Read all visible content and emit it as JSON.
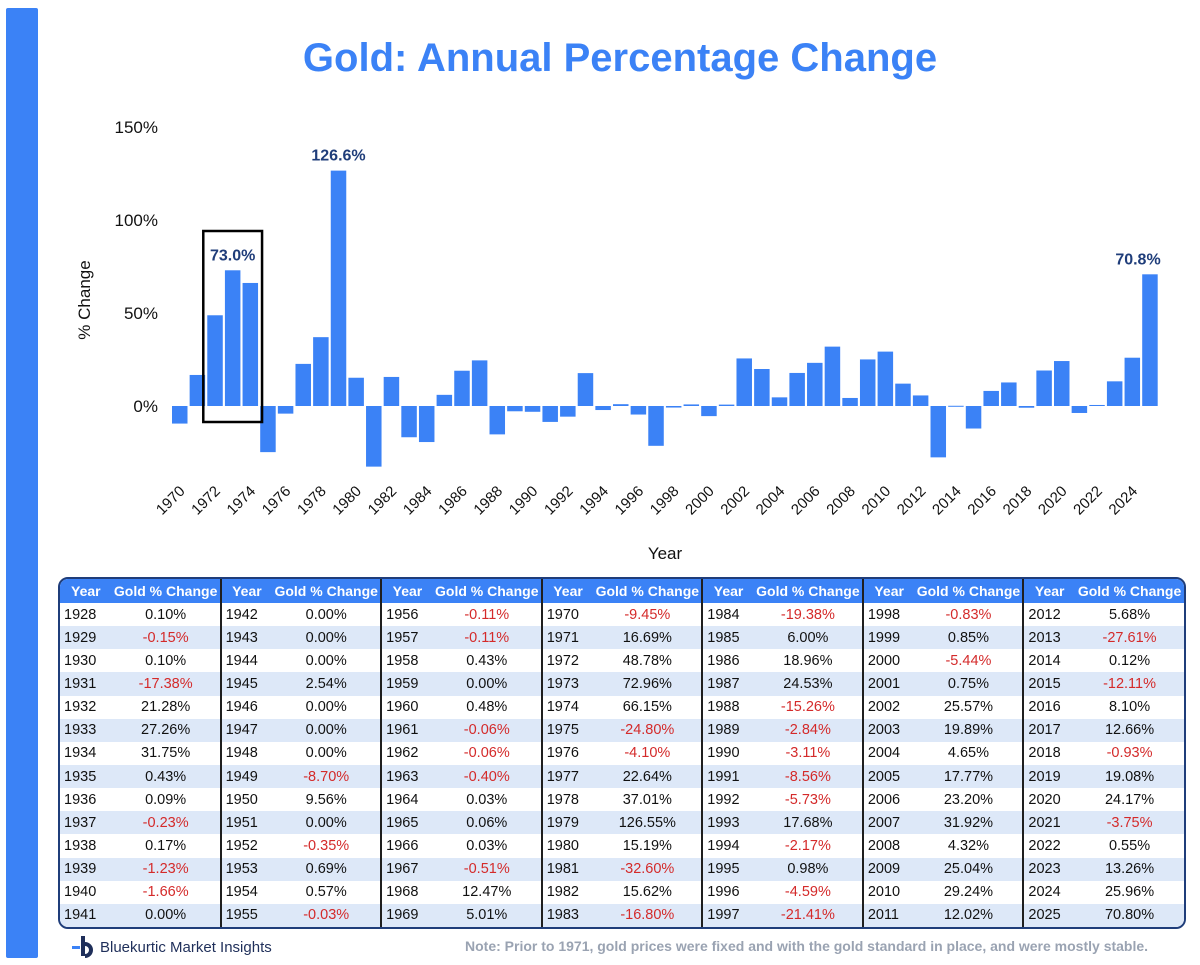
{
  "chart_data": {
    "type": "bar",
    "title": "Gold: Annual Percentage Change",
    "xlabel": "Year",
    "ylabel": "% Change",
    "ylim": [
      -35,
      150
    ],
    "yticks": [
      "150%",
      "100%",
      "50%",
      "0%"
    ],
    "ytick_values": [
      150,
      100,
      50,
      0
    ],
    "xtick_labels": [
      "1970",
      "1972",
      "1974",
      "1976",
      "1978",
      "1980",
      "1982",
      "1984",
      "1986",
      "1988",
      "1990",
      "1992",
      "1994",
      "1996",
      "1998",
      "2000",
      "2002",
      "2004",
      "2006",
      "2008",
      "2010",
      "2012",
      "2014",
      "2016",
      "2018",
      "2020",
      "2022",
      "2024"
    ],
    "categories": [
      1970,
      1971,
      1972,
      1973,
      1974,
      1975,
      1976,
      1977,
      1978,
      1979,
      1980,
      1981,
      1982,
      1983,
      1984,
      1985,
      1986,
      1987,
      1988,
      1989,
      1990,
      1991,
      1992,
      1993,
      1994,
      1995,
      1996,
      1997,
      1998,
      1999,
      2000,
      2001,
      2002,
      2003,
      2004,
      2005,
      2006,
      2007,
      2008,
      2009,
      2010,
      2011,
      2012,
      2013,
      2014,
      2015,
      2016,
      2017,
      2018,
      2019,
      2020,
      2021,
      2022,
      2023,
      2024,
      2025
    ],
    "values": [
      -9.45,
      16.69,
      48.78,
      72.96,
      66.15,
      -24.8,
      -4.1,
      22.64,
      37.01,
      126.55,
      15.19,
      -32.6,
      15.62,
      -16.8,
      -19.38,
      6.0,
      18.96,
      24.53,
      -15.26,
      -2.84,
      -3.11,
      -8.56,
      -5.73,
      17.68,
      -2.17,
      0.98,
      -4.59,
      -21.41,
      -0.83,
      0.85,
      -5.44,
      0.75,
      25.57,
      19.89,
      4.65,
      17.77,
      23.2,
      31.92,
      4.32,
      25.04,
      29.24,
      12.02,
      5.68,
      -27.61,
      0.12,
      -12.11,
      8.1,
      12.66,
      -0.93,
      19.08,
      24.17,
      -3.75,
      0.55,
      13.26,
      25.96,
      70.8
    ],
    "annotations": [
      {
        "year": 1973,
        "text": "73.0%"
      },
      {
        "year": 1979,
        "text": "126.6%"
      },
      {
        "year": 2025,
        "text": "70.8%"
      }
    ],
    "highlight_range": [
      1972,
      1974
    ],
    "bar_color": "#3b82f6"
  },
  "table": {
    "headers": {
      "year": "Year",
      "change": "Gold % Change"
    },
    "columns": [
      [
        [
          "1928",
          "0.10%"
        ],
        [
          "1929",
          "-0.15%"
        ],
        [
          "1930",
          "0.10%"
        ],
        [
          "1931",
          "-17.38%"
        ],
        [
          "1932",
          "21.28%"
        ],
        [
          "1933",
          "27.26%"
        ],
        [
          "1934",
          "31.75%"
        ],
        [
          "1935",
          "0.43%"
        ],
        [
          "1936",
          "0.09%"
        ],
        [
          "1937",
          "-0.23%"
        ],
        [
          "1938",
          "0.17%"
        ],
        [
          "1939",
          "-1.23%"
        ],
        [
          "1940",
          "-1.66%"
        ],
        [
          "1941",
          "0.00%"
        ]
      ],
      [
        [
          "1942",
          "0.00%"
        ],
        [
          "1943",
          "0.00%"
        ],
        [
          "1944",
          "0.00%"
        ],
        [
          "1945",
          "2.54%"
        ],
        [
          "1946",
          "0.00%"
        ],
        [
          "1947",
          "0.00%"
        ],
        [
          "1948",
          "0.00%"
        ],
        [
          "1949",
          "-8.70%"
        ],
        [
          "1950",
          "9.56%"
        ],
        [
          "1951",
          "0.00%"
        ],
        [
          "1952",
          "-0.35%"
        ],
        [
          "1953",
          "0.69%"
        ],
        [
          "1954",
          "0.57%"
        ],
        [
          "1955",
          "-0.03%"
        ]
      ],
      [
        [
          "1956",
          "-0.11%"
        ],
        [
          "1957",
          "-0.11%"
        ],
        [
          "1958",
          "0.43%"
        ],
        [
          "1959",
          "0.00%"
        ],
        [
          "1960",
          "0.48%"
        ],
        [
          "1961",
          "-0.06%"
        ],
        [
          "1962",
          "-0.06%"
        ],
        [
          "1963",
          "-0.40%"
        ],
        [
          "1964",
          "0.03%"
        ],
        [
          "1965",
          "0.06%"
        ],
        [
          "1966",
          "0.03%"
        ],
        [
          "1967",
          "-0.51%"
        ],
        [
          "1968",
          "12.47%"
        ],
        [
          "1969",
          "5.01%"
        ]
      ],
      [
        [
          "1970",
          "-9.45%"
        ],
        [
          "1971",
          "16.69%"
        ],
        [
          "1972",
          "48.78%"
        ],
        [
          "1973",
          "72.96%"
        ],
        [
          "1974",
          "66.15%"
        ],
        [
          "1975",
          "-24.80%"
        ],
        [
          "1976",
          "-4.10%"
        ],
        [
          "1977",
          "22.64%"
        ],
        [
          "1978",
          "37.01%"
        ],
        [
          "1979",
          "126.55%"
        ],
        [
          "1980",
          "15.19%"
        ],
        [
          "1981",
          "-32.60%"
        ],
        [
          "1982",
          "15.62%"
        ],
        [
          "1983",
          "-16.80%"
        ]
      ],
      [
        [
          "1984",
          "-19.38%"
        ],
        [
          "1985",
          "6.00%"
        ],
        [
          "1986",
          "18.96%"
        ],
        [
          "1987",
          "24.53%"
        ],
        [
          "1988",
          "-15.26%"
        ],
        [
          "1989",
          "-2.84%"
        ],
        [
          "1990",
          "-3.11%"
        ],
        [
          "1991",
          "-8.56%"
        ],
        [
          "1992",
          "-5.73%"
        ],
        [
          "1993",
          "17.68%"
        ],
        [
          "1994",
          "-2.17%"
        ],
        [
          "1995",
          "0.98%"
        ],
        [
          "1996",
          "-4.59%"
        ],
        [
          "1997",
          "-21.41%"
        ]
      ],
      [
        [
          "1998",
          "-0.83%"
        ],
        [
          "1999",
          "0.85%"
        ],
        [
          "2000",
          "-5.44%"
        ],
        [
          "2001",
          "0.75%"
        ],
        [
          "2002",
          "25.57%"
        ],
        [
          "2003",
          "19.89%"
        ],
        [
          "2004",
          "4.65%"
        ],
        [
          "2005",
          "17.77%"
        ],
        [
          "2006",
          "23.20%"
        ],
        [
          "2007",
          "31.92%"
        ],
        [
          "2008",
          "4.32%"
        ],
        [
          "2009",
          "25.04%"
        ],
        [
          "2010",
          "29.24%"
        ],
        [
          "2011",
          "12.02%"
        ]
      ],
      [
        [
          "2012",
          "5.68%"
        ],
        [
          "2013",
          "-27.61%"
        ],
        [
          "2014",
          "0.12%"
        ],
        [
          "2015",
          "-12.11%"
        ],
        [
          "2016",
          "8.10%"
        ],
        [
          "2017",
          "12.66%"
        ],
        [
          "2018",
          "-0.93%"
        ],
        [
          "2019",
          "19.08%"
        ],
        [
          "2020",
          "24.17%"
        ],
        [
          "2021",
          "-3.75%"
        ],
        [
          "2022",
          "0.55%"
        ],
        [
          "2023",
          "13.26%"
        ],
        [
          "2024",
          "25.96%"
        ],
        [
          "2025",
          "70.80%"
        ]
      ]
    ]
  },
  "footer": {
    "brand": "Bluekurtic Market Insights",
    "note": "Note: Prior to 1971, gold prices were fixed and with the gold standard in place, and were mostly stable."
  },
  "colors": {
    "accent": "#3b82f6",
    "negative": "#d42a2a",
    "dark_blue": "#1f3d7a"
  }
}
